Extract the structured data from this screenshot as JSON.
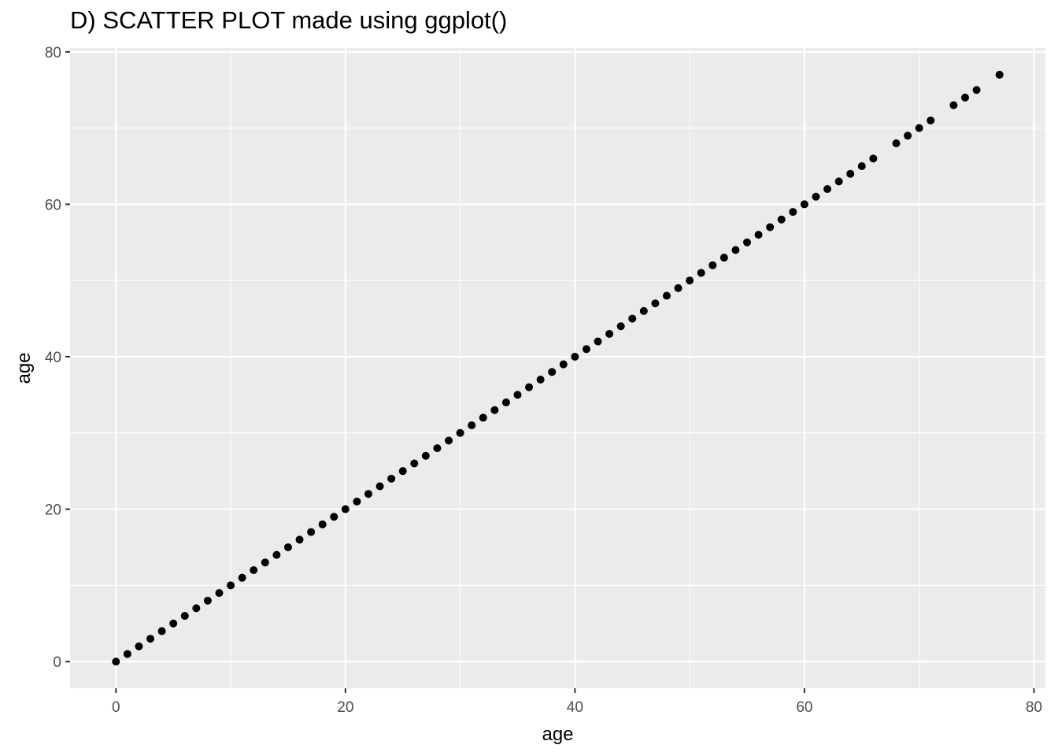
{
  "chart_data": {
    "type": "scatter",
    "title": "D) SCATTER PLOT made using ggplot()",
    "xlabel": "age",
    "ylabel": "age",
    "xlim": [
      -4,
      81
    ],
    "ylim": [
      -3.5,
      80.5
    ],
    "x_ticks": [
      0,
      20,
      40,
      60,
      80
    ],
    "y_ticks": [
      0,
      20,
      40,
      60,
      80
    ],
    "grid": true,
    "colors": {
      "panel": "#ebebeb",
      "grid": "#ffffff",
      "point": "#000000",
      "tick_text": "#4d4d4d"
    },
    "points": {
      "x": [
        0,
        1,
        2,
        3,
        4,
        5,
        6,
        7,
        8,
        9,
        10,
        11,
        12,
        13,
        14,
        15,
        16,
        17,
        18,
        19,
        20,
        21,
        22,
        23,
        24,
        25,
        26,
        27,
        28,
        29,
        30,
        31,
        32,
        33,
        34,
        35,
        36,
        37,
        38,
        39,
        40,
        41,
        42,
        43,
        44,
        45,
        46,
        47,
        48,
        49,
        50,
        51,
        52,
        53,
        54,
        55,
        56,
        57,
        58,
        59,
        60,
        61,
        62,
        63,
        64,
        65,
        66,
        68,
        69,
        70,
        71,
        73,
        74,
        75,
        77
      ],
      "y": [
        0,
        1,
        2,
        3,
        4,
        5,
        6,
        7,
        8,
        9,
        10,
        11,
        12,
        13,
        14,
        15,
        16,
        17,
        18,
        19,
        20,
        21,
        22,
        23,
        24,
        25,
        26,
        27,
        28,
        29,
        30,
        31,
        32,
        33,
        34,
        35,
        36,
        37,
        38,
        39,
        40,
        41,
        42,
        43,
        44,
        45,
        46,
        47,
        48,
        49,
        50,
        51,
        52,
        53,
        54,
        55,
        56,
        57,
        58,
        59,
        60,
        61,
        62,
        63,
        64,
        65,
        66,
        68,
        69,
        70,
        71,
        73,
        74,
        75,
        77
      ]
    }
  }
}
